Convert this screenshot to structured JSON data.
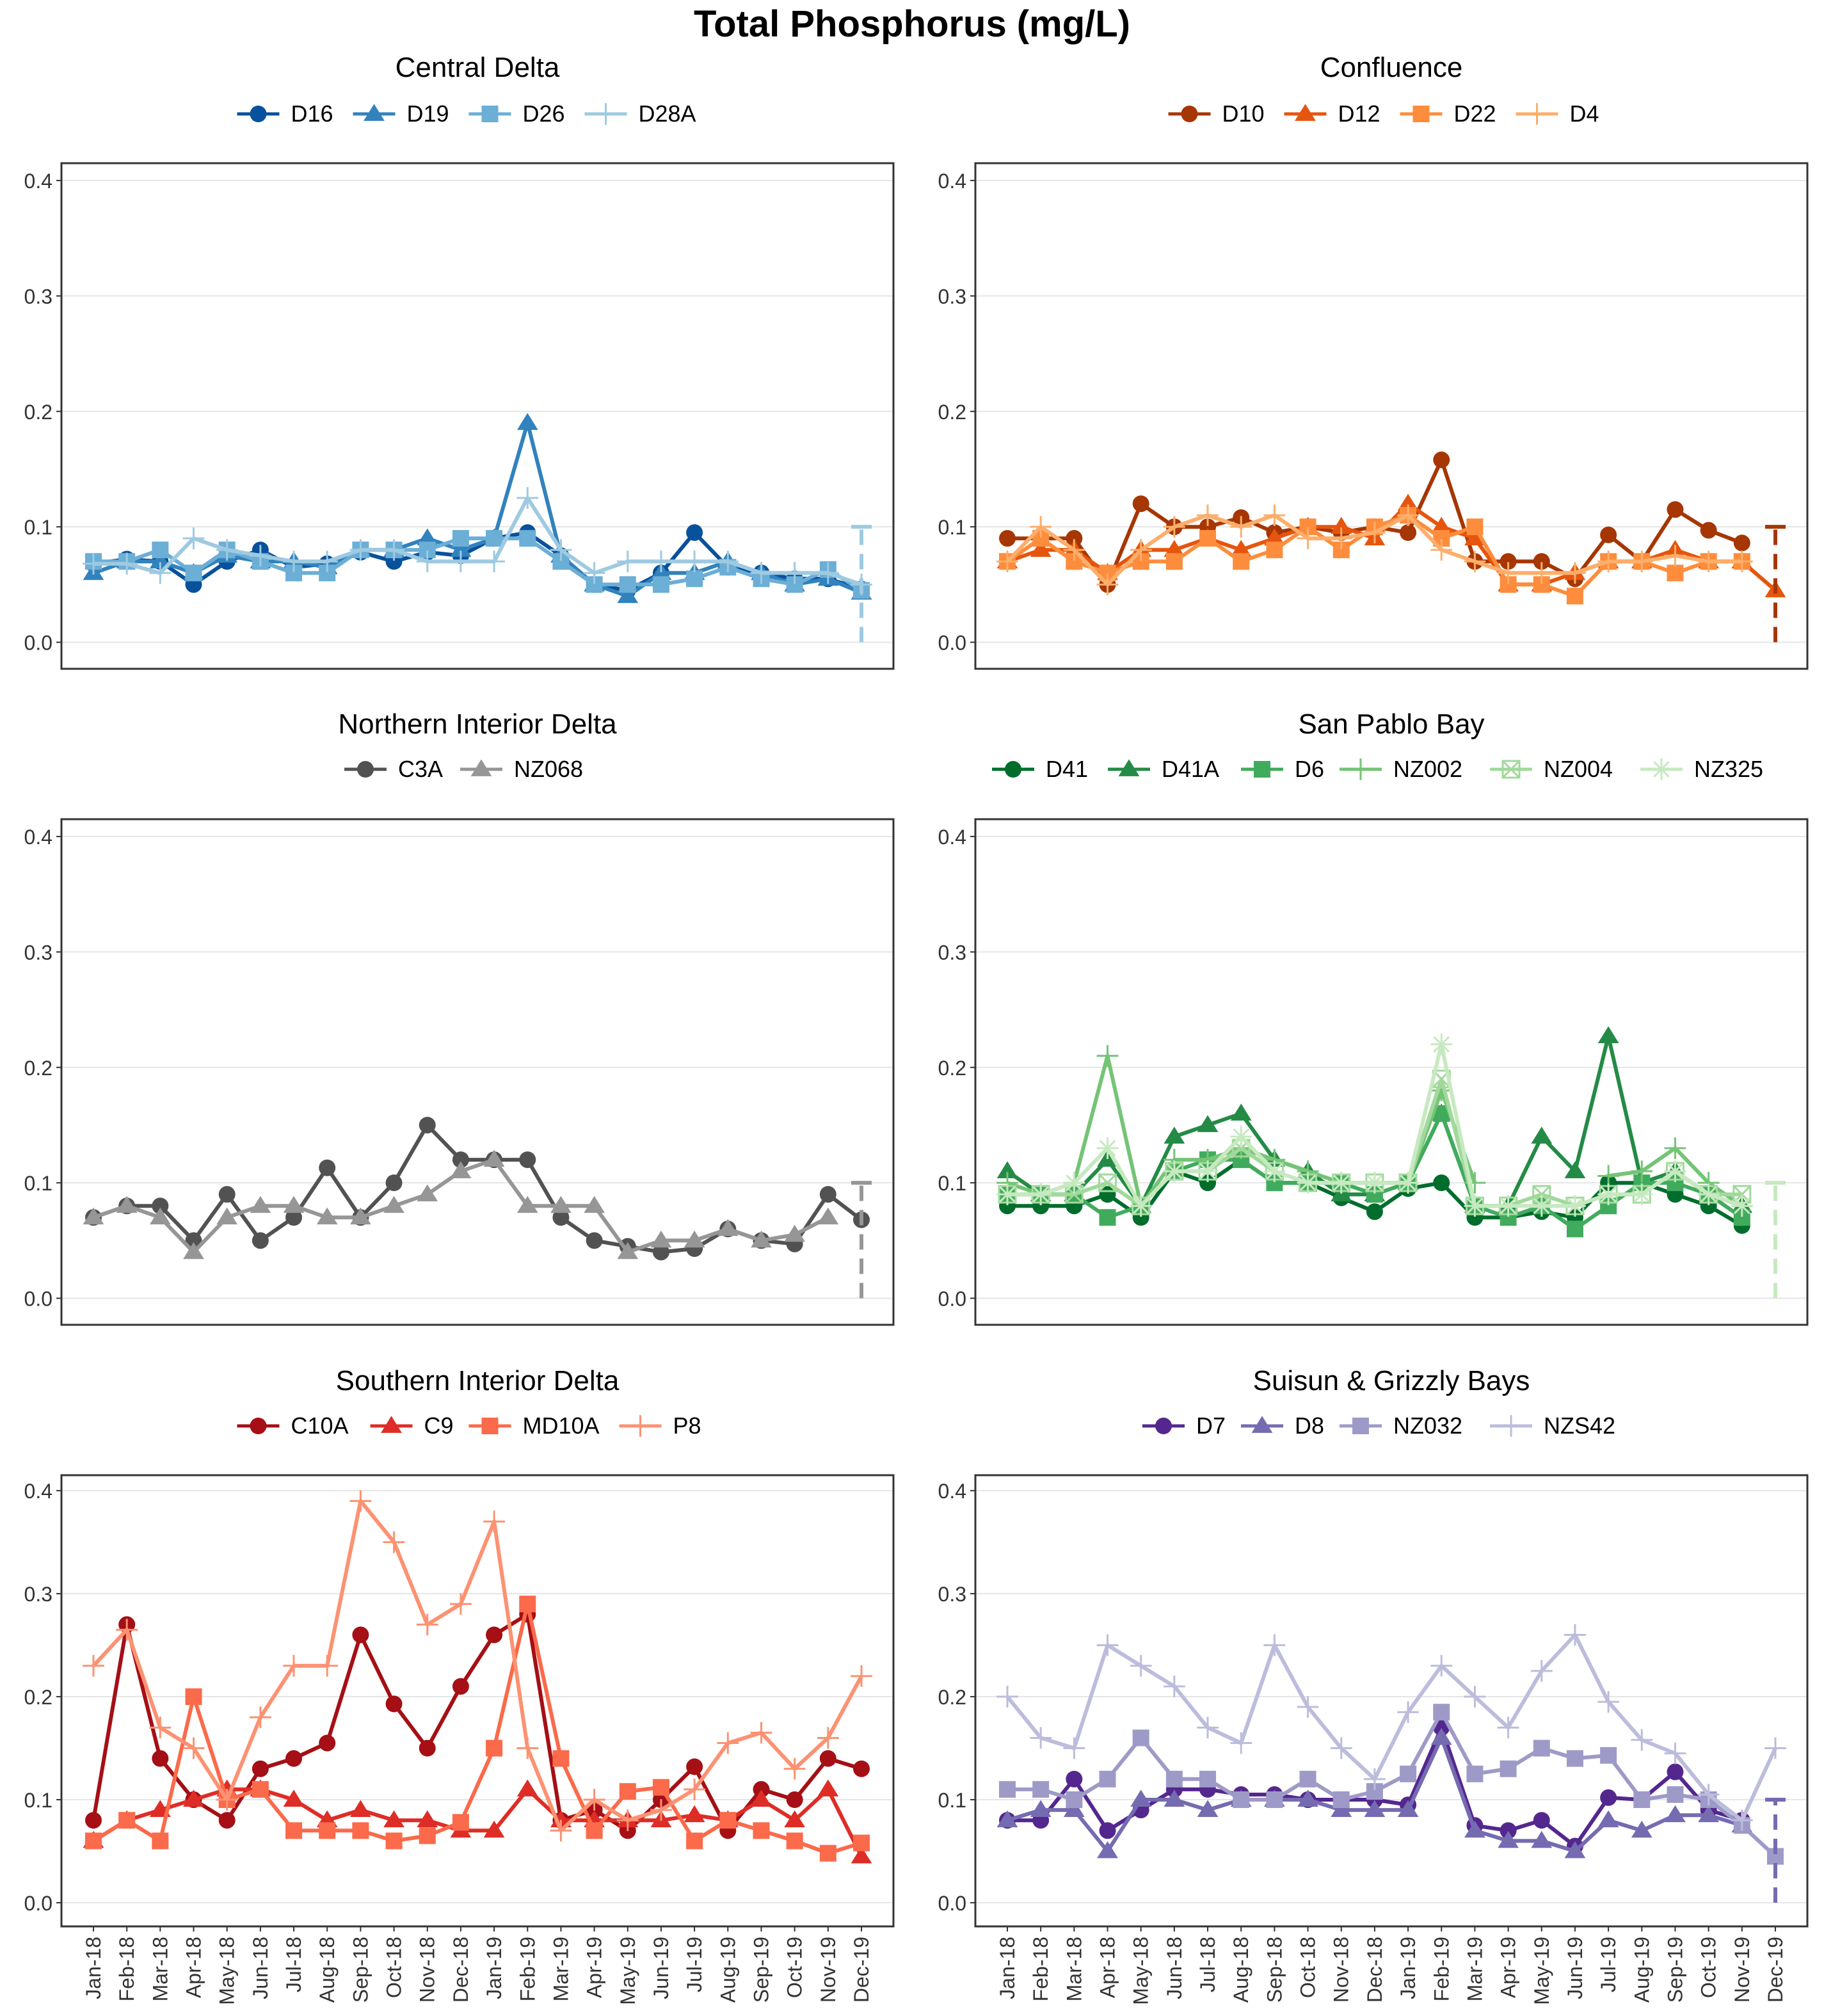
{
  "title": "Total Phosphorus (mg/L)",
  "y_ticks": [
    "0.0",
    "0.1",
    "0.2",
    "0.3",
    "0.4"
  ],
  "months": [
    "Jan-18",
    "Feb-18",
    "Mar-18",
    "Apr-18",
    "May-18",
    "Jun-18",
    "Jul-18",
    "Aug-18",
    "Sep-18",
    "Oct-18",
    "Nov-18",
    "Dec-18",
    "Jan-19",
    "Feb-19",
    "Mar-19",
    "Apr-19",
    "May-19",
    "Jun-19",
    "Jul-19",
    "Aug-19",
    "Sep-19",
    "Oct-19",
    "Nov-19",
    "Dec-19"
  ],
  "chart_data": [
    {
      "type": "line",
      "title": "Central Delta",
      "ylim": [
        0,
        0.4
      ],
      "series": [
        {
          "name": "D16",
          "color": "#08519c",
          "marker": "circle",
          "values": [
            0.068,
            0.072,
            0.07,
            0.05,
            0.07,
            0.08,
            0.065,
            0.068,
            0.078,
            0.07,
            0.078,
            0.075,
            0.09,
            0.095,
            0.075,
            0.05,
            0.045,
            0.06,
            0.095,
            0.065,
            0.06,
            0.055,
            0.055,
            0.046
          ]
        },
        {
          "name": "D19",
          "color": "#3182bd",
          "marker": "triangle",
          "values": [
            0.06,
            0.07,
            0.07,
            0.06,
            0.075,
            0.07,
            0.07,
            0.065,
            0.08,
            0.08,
            0.09,
            0.08,
            0.09,
            0.19,
            0.075,
            0.05,
            0.04,
            0.06,
            0.06,
            0.07,
            0.06,
            0.05,
            0.055,
            0.043
          ]
        },
        {
          "name": "D26",
          "color": "#6baed6",
          "marker": "square",
          "values": [
            0.07,
            0.07,
            0.08,
            0.06,
            0.08,
            0.07,
            0.06,
            0.06,
            0.08,
            0.08,
            0.08,
            0.09,
            0.09,
            0.09,
            0.07,
            0.05,
            0.05,
            0.05,
            0.055,
            0.065,
            0.055,
            0.05,
            0.063,
            0.045
          ]
        },
        {
          "name": "D28A",
          "color": "#9ecae1",
          "marker": "plus",
          "values": [
            0.068,
            0.068,
            0.06,
            0.09,
            0.08,
            0.075,
            0.07,
            0.07,
            0.08,
            0.08,
            0.07,
            0.07,
            0.07,
            0.125,
            0.08,
            0.06,
            0.07,
            0.07,
            0.07,
            0.07,
            0.06,
            0.06,
            0.06,
            0.05
          ]
        }
      ],
      "dashed_last": {
        "color": "#9ecae1",
        "from": 0.0,
        "to": 0.1
      }
    },
    {
      "type": "line",
      "title": "Confluence",
      "ylim": [
        0,
        0.4
      ],
      "series": [
        {
          "name": "D10",
          "color": "#a63603",
          "marker": "circle",
          "values": [
            0.09,
            0.09,
            0.09,
            0.05,
            0.12,
            0.1,
            0.1,
            0.108,
            0.095,
            0.1,
            0.095,
            0.1,
            0.095,
            0.158,
            0.07,
            0.07,
            0.07,
            0.055,
            0.093,
            0.07,
            0.115,
            0.097,
            0.086,
            null
          ]
        },
        {
          "name": "D12",
          "color": "#e6550d",
          "marker": "triangle",
          "values": [
            0.07,
            0.08,
            0.08,
            0.06,
            0.08,
            0.08,
            0.09,
            0.08,
            0.09,
            0.1,
            0.1,
            0.09,
            0.12,
            0.1,
            0.09,
            0.05,
            0.05,
            0.06,
            0.07,
            0.07,
            0.08,
            0.07,
            0.07,
            0.045
          ]
        },
        {
          "name": "D22",
          "color": "#fd8d3c",
          "marker": "square",
          "values": [
            0.07,
            0.09,
            0.07,
            0.06,
            0.07,
            0.07,
            0.09,
            0.07,
            0.08,
            0.1,
            0.08,
            0.1,
            0.11,
            0.09,
            0.1,
            0.05,
            0.05,
            0.04,
            0.07,
            0.07,
            0.06,
            0.07,
            0.07,
            null
          ]
        },
        {
          "name": "D4",
          "color": "#fdae6b",
          "marker": "plus",
          "values": [
            0.07,
            0.1,
            0.08,
            0.05,
            0.08,
            0.1,
            0.11,
            0.1,
            0.11,
            0.09,
            0.09,
            0.095,
            0.11,
            0.08,
            0.07,
            0.06,
            0.06,
            0.06,
            0.07,
            0.07,
            0.075,
            0.07,
            0.07,
            null
          ]
        }
      ],
      "dashed_last": {
        "color": "#a63603",
        "from": 0.0,
        "to": 0.1
      }
    },
    {
      "type": "line",
      "title": "Northern Interior Delta",
      "ylim": [
        0,
        0.4
      ],
      "series": [
        {
          "name": "C3A",
          "color": "#525252",
          "marker": "circle",
          "values": [
            0.07,
            0.08,
            0.08,
            0.05,
            0.09,
            0.05,
            0.07,
            0.113,
            0.07,
            0.1,
            0.15,
            0.12,
            0.12,
            0.12,
            0.07,
            0.05,
            0.045,
            0.04,
            0.043,
            0.06,
            0.05,
            0.047,
            0.09,
            0.068
          ]
        },
        {
          "name": "NZ068",
          "color": "#969696",
          "marker": "triangle",
          "values": [
            0.07,
            0.08,
            0.07,
            0.04,
            0.07,
            0.08,
            0.08,
            0.07,
            0.07,
            0.08,
            0.09,
            0.11,
            0.12,
            0.08,
            0.08,
            0.08,
            0.04,
            0.05,
            0.05,
            0.06,
            0.05,
            0.055,
            0.07,
            null
          ]
        }
      ],
      "dashed_last": {
        "color": "#969696",
        "from": 0.0,
        "to": 0.1
      }
    },
    {
      "type": "line",
      "title": "San Pablo Bay",
      "ylim": [
        0,
        0.4
      ],
      "series": [
        {
          "name": "D41",
          "color": "#006d2c",
          "marker": "circle",
          "values": [
            0.08,
            0.08,
            0.08,
            0.09,
            0.07,
            0.11,
            0.1,
            0.12,
            0.1,
            0.1,
            0.087,
            0.075,
            0.095,
            0.1,
            0.07,
            0.07,
            0.075,
            0.07,
            0.1,
            0.1,
            0.09,
            0.08,
            0.063,
            null
          ]
        },
        {
          "name": "D41A",
          "color": "#238b45",
          "marker": "triangle",
          "values": [
            0.11,
            0.09,
            0.09,
            0.12,
            0.08,
            0.14,
            0.15,
            0.16,
            0.12,
            0.11,
            0.09,
            0.09,
            0.1,
            0.16,
            0.08,
            0.08,
            0.14,
            0.11,
            0.227,
            0.1,
            0.11,
            0.09,
            0.08,
            null
          ]
        },
        {
          "name": "D6",
          "color": "#41ab5d",
          "marker": "square",
          "values": [
            0.09,
            0.09,
            0.09,
            0.07,
            0.08,
            0.11,
            0.12,
            0.12,
            0.1,
            0.1,
            0.1,
            0.09,
            0.1,
            0.16,
            0.08,
            0.07,
            0.08,
            0.06,
            0.08,
            0.1,
            0.1,
            0.09,
            0.07,
            null
          ]
        },
        {
          "name": "NZ002",
          "color": "#74c476",
          "marker": "plus",
          "values": [
            0.1,
            0.09,
            0.1,
            0.21,
            0.08,
            0.12,
            0.12,
            0.13,
            0.12,
            0.11,
            0.1,
            0.1,
            0.1,
            0.18,
            0.1,
            null,
            null,
            null,
            0.106,
            0.11,
            0.13,
            0.1,
            0.08,
            null
          ]
        },
        {
          "name": "NZ004",
          "color": "#a1d99b",
          "marker": "boxx",
          "values": [
            0.09,
            0.09,
            0.09,
            0.1,
            0.08,
            0.11,
            0.11,
            0.13,
            0.11,
            0.1,
            0.1,
            0.1,
            0.1,
            0.19,
            0.08,
            0.08,
            0.09,
            0.08,
            0.09,
            0.09,
            0.11,
            0.09,
            0.09,
            null
          ]
        },
        {
          "name": "NZ325",
          "color": "#c7e9c0",
          "marker": "star",
          "values": [
            0.09,
            0.09,
            0.1,
            0.13,
            0.08,
            0.11,
            0.11,
            0.14,
            0.11,
            0.1,
            0.1,
            0.1,
            0.1,
            0.22,
            0.08,
            0.08,
            0.08,
            0.08,
            0.09,
            0.09,
            0.11,
            0.09,
            0.08,
            null
          ]
        }
      ],
      "dashed_last": {
        "color": "#c7e9c0",
        "from": 0.0,
        "to": 0.1
      }
    },
    {
      "type": "line",
      "title": "Southern Interior Delta",
      "ylim": [
        0,
        0.4
      ],
      "series": [
        {
          "name": "C10A",
          "color": "#a50f15",
          "marker": "circle",
          "values": [
            0.08,
            0.27,
            0.14,
            0.1,
            0.08,
            0.13,
            0.14,
            0.155,
            0.26,
            0.193,
            0.15,
            0.21,
            0.26,
            0.28,
            0.08,
            0.09,
            0.07,
            0.1,
            0.132,
            0.07,
            0.11,
            0.1,
            0.14,
            0.13
          ]
        },
        {
          "name": "C9",
          "color": "#de2d26",
          "marker": "triangle",
          "values": [
            0.06,
            0.08,
            0.09,
            0.1,
            0.11,
            0.11,
            0.1,
            0.08,
            0.09,
            0.08,
            0.08,
            0.07,
            0.07,
            0.11,
            0.08,
            0.08,
            0.08,
            0.08,
            0.085,
            0.08,
            0.1,
            0.08,
            0.11,
            0.045
          ]
        },
        {
          "name": "MD10A",
          "color": "#fb6a4a",
          "marker": "square",
          "values": [
            0.06,
            0.08,
            0.06,
            0.2,
            0.1,
            0.11,
            0.07,
            0.07,
            0.07,
            0.06,
            0.065,
            0.078,
            0.15,
            0.29,
            0.14,
            0.07,
            0.108,
            0.112,
            0.06,
            0.08,
            0.07,
            0.06,
            0.048,
            0.058
          ]
        },
        {
          "name": "P8",
          "color": "#fc9272",
          "marker": "plus",
          "values": [
            0.23,
            0.265,
            0.17,
            0.15,
            0.1,
            0.18,
            0.23,
            0.23,
            0.39,
            0.35,
            0.27,
            0.29,
            0.37,
            0.15,
            0.07,
            0.1,
            0.08,
            0.09,
            0.11,
            0.155,
            0.165,
            0.13,
            0.16,
            0.22
          ]
        }
      ]
    },
    {
      "type": "line",
      "title": "Suisun & Grizzly Bays",
      "ylim": [
        0,
        0.4
      ],
      "series": [
        {
          "name": "D7",
          "color": "#54278f",
          "marker": "circle",
          "values": [
            0.08,
            0.08,
            0.12,
            0.07,
            0.09,
            0.11,
            0.11,
            0.105,
            0.105,
            0.1,
            0.1,
            0.1,
            0.095,
            0.17,
            0.075,
            0.07,
            0.08,
            0.055,
            0.102,
            0.1,
            0.127,
            0.09,
            0.08,
            null
          ]
        },
        {
          "name": "D8",
          "color": "#756bb1",
          "marker": "triangle",
          "values": [
            0.08,
            0.09,
            0.09,
            0.05,
            0.1,
            0.1,
            0.09,
            0.1,
            0.1,
            0.1,
            0.09,
            0.09,
            0.09,
            0.16,
            0.07,
            0.06,
            0.06,
            0.05,
            0.08,
            0.07,
            0.085,
            0.085,
            0.075,
            null
          ]
        },
        {
          "name": "NZ032",
          "color": "#9e9ac8",
          "marker": "square",
          "values": [
            0.11,
            0.11,
            0.1,
            0.12,
            0.16,
            0.12,
            0.12,
            0.1,
            0.1,
            0.12,
            0.1,
            0.108,
            0.125,
            0.185,
            0.125,
            0.13,
            0.15,
            0.14,
            0.143,
            0.1,
            0.105,
            0.1,
            0.075,
            0.045
          ]
        },
        {
          "name": "NZS42",
          "color": "#bcbddc",
          "marker": "plus",
          "values": [
            0.2,
            0.16,
            0.15,
            0.25,
            0.23,
            0.21,
            0.17,
            0.155,
            0.25,
            0.19,
            0.15,
            0.12,
            0.185,
            0.23,
            0.2,
            0.17,
            0.225,
            0.26,
            0.195,
            0.158,
            0.145,
            0.105,
            0.08,
            0.15
          ]
        }
      ],
      "dashed_last": {
        "color": "#756bb1",
        "from": 0.0,
        "to": 0.1
      }
    }
  ]
}
